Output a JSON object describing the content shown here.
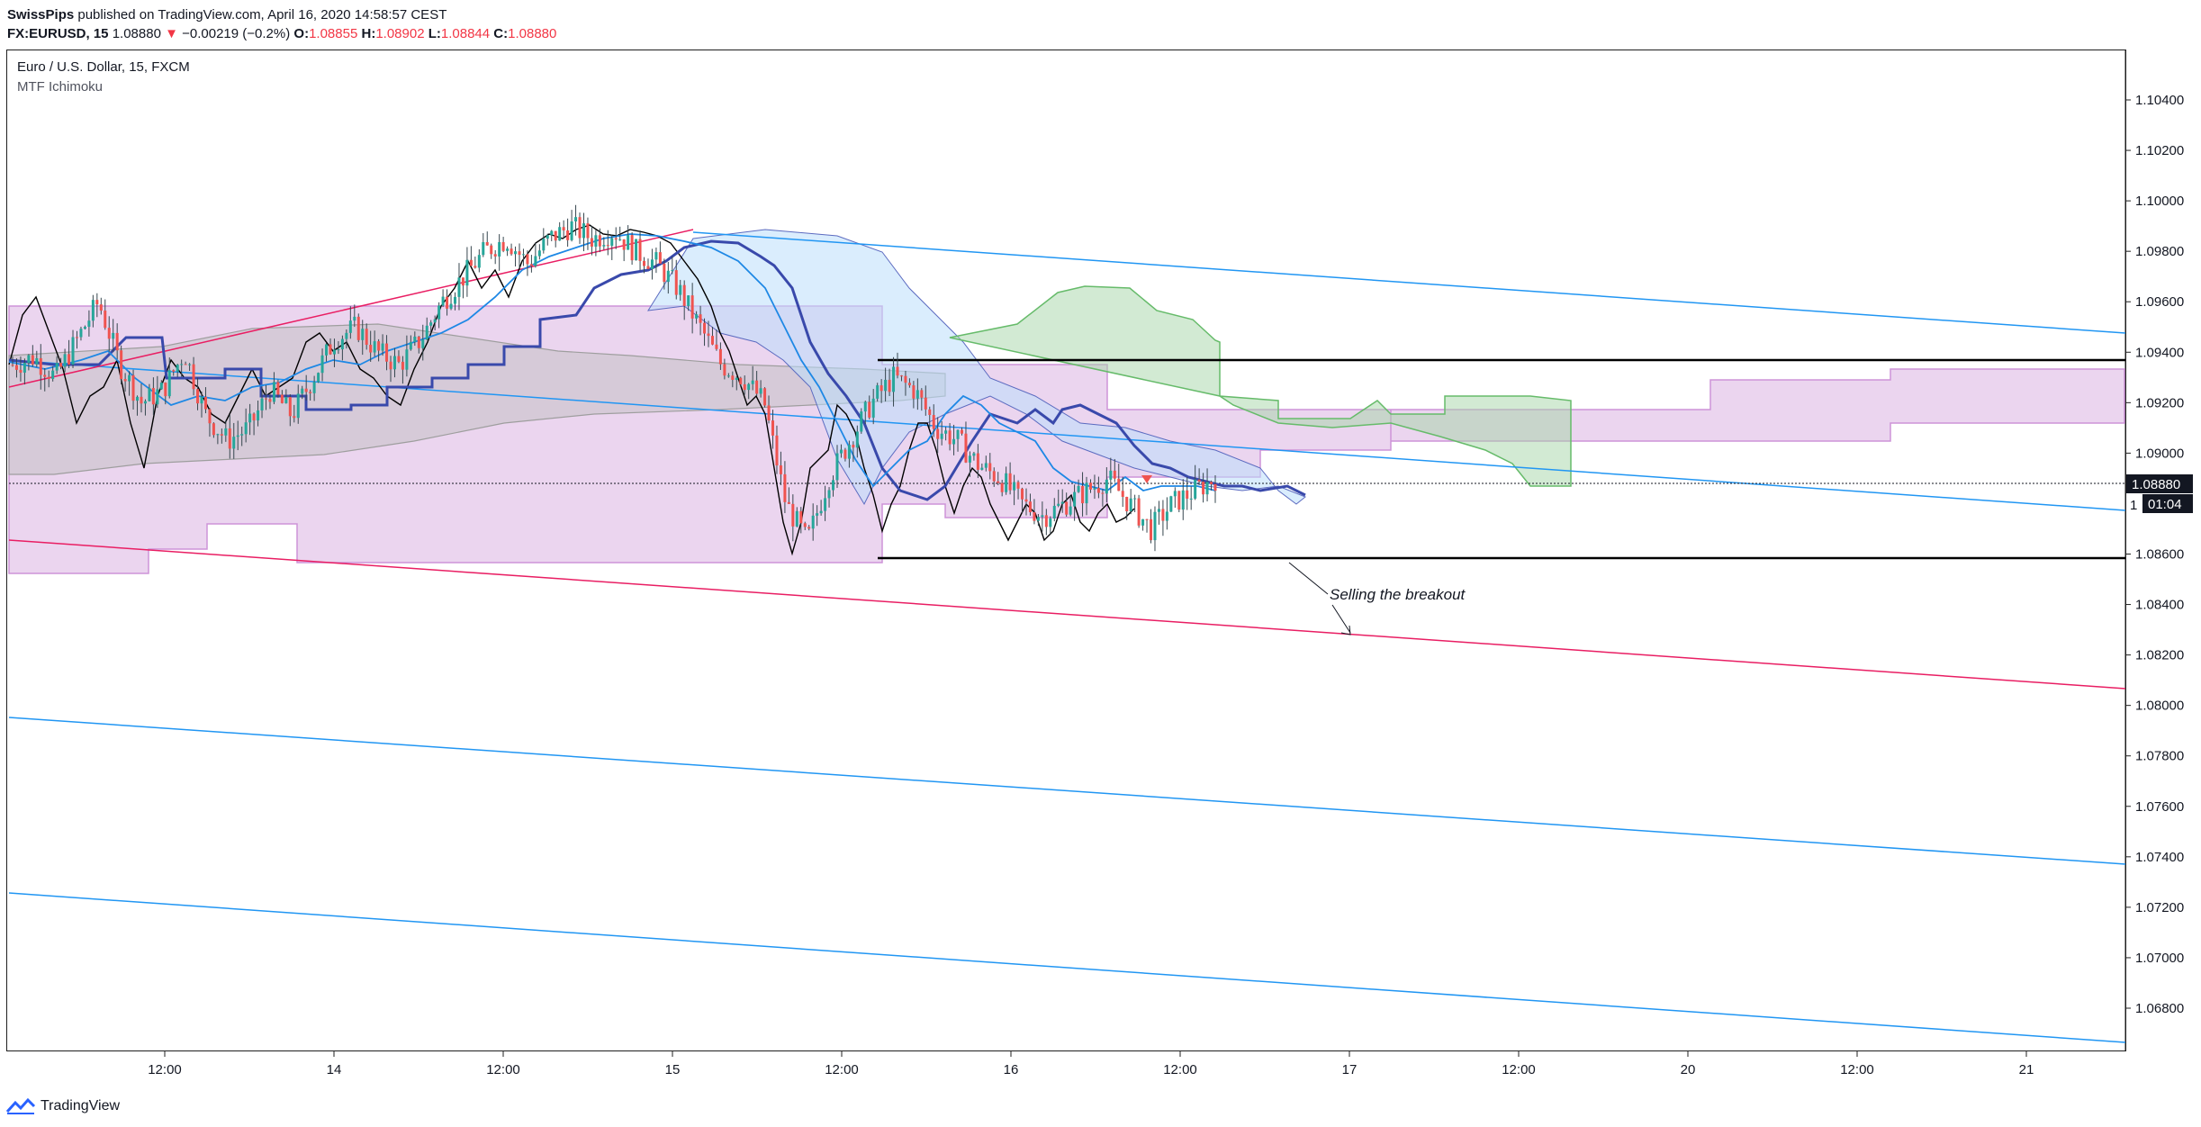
{
  "header": {
    "author": "SwissPips",
    "published_text": " published on TradingView.com, April 16, 2020 14:58:57 CEST",
    "symbol": "FX:EURUSD, 15",
    "last_price": "1.08880",
    "change": "−0.00219 (−0.2%)",
    "open_label": "O:",
    "open_value": "1.08855",
    "high_label": "H:",
    "high_value": "1.08902",
    "low_label": "L:",
    "low_value": "1.08844",
    "close_label": "C:",
    "close_value": "1.08880"
  },
  "legend": {
    "title": "Euro / U.S. Dollar, 15, FXCM",
    "indicator": "MTF Ichimoku"
  },
  "annotation": {
    "text": "Selling the breakout"
  },
  "price_badge": {
    "price": "1.08880",
    "countdown": "01:04"
  },
  "footer": {
    "brand": "TradingView"
  },
  "colors": {
    "candle_up": "#26a69a",
    "candle_down": "#ef5350",
    "cloud_purple": "#e1bee7",
    "cloud_green": "#a5d6a7",
    "channel_blue": "#2196f3",
    "channel_red": "#e91e63"
  },
  "chart_data": {
    "type": "candlestick",
    "y_axis_ticks": [
      "1.10400",
      "1.10200",
      "1.10000",
      "1.09800",
      "1.09600",
      "1.09400",
      "1.09200",
      "1.09000",
      "1.08600",
      "1.08400",
      "1.08200",
      "1.08000",
      "1.07800",
      "1.07600",
      "1.07400",
      "1.07200",
      "1.07000",
      "1.06800"
    ],
    "x_axis_ticks": [
      "12:00",
      "14",
      "12:00",
      "15",
      "12:00",
      "16",
      "12:00",
      "17",
      "12:00",
      "20",
      "12:00",
      "21"
    ],
    "ylim": [
      1.0665,
      1.1055
    ],
    "last_price": 1.0888,
    "range_box": {
      "top": 1.0938,
      "bottom": 1.0858
    },
    "price_path": [
      1.0935,
      1.0938,
      1.093,
      1.0945,
      1.096,
      1.0935,
      1.092,
      1.0925,
      1.094,
      1.0915,
      1.0905,
      1.091,
      1.0925,
      1.0915,
      1.093,
      1.0945,
      1.095,
      1.094,
      1.0935,
      1.0945,
      1.096,
      1.097,
      1.098,
      1.0985,
      1.0975,
      1.0985,
      1.099,
      1.0985,
      1.0988,
      1.098,
      1.0975,
      1.0965,
      1.095,
      1.0935,
      1.093,
      1.092,
      1.088,
      1.0865,
      1.089,
      1.0905,
      1.092,
      1.093,
      1.0925,
      1.091,
      1.0905,
      1.0895,
      1.089,
      1.088,
      1.0875,
      1.088,
      1.0885,
      1.089,
      1.088,
      1.087,
      1.088,
      1.0885,
      1.089
    ]
  }
}
